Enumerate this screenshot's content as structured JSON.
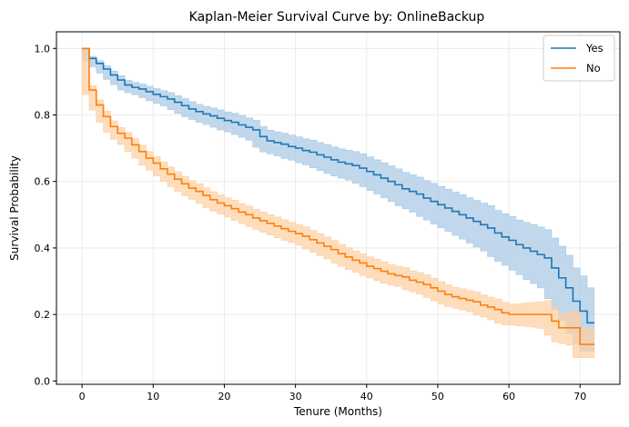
{
  "chart_data": {
    "type": "line",
    "step": true,
    "title": "Kaplan-Meier Survival Curve by: OnlineBackup",
    "xlabel": "Tenure (Months)",
    "ylabel": "Survival Probability",
    "xlim": [
      -3.6,
      75.6
    ],
    "ylim": [
      -0.01,
      1.05
    ],
    "xticks": [
      0,
      10,
      20,
      30,
      40,
      50,
      60,
      70
    ],
    "yticks": [
      0.0,
      0.2,
      0.4,
      0.6,
      0.8,
      1.0
    ],
    "xtick_labels": [
      "0",
      "10",
      "20",
      "30",
      "40",
      "50",
      "60",
      "70"
    ],
    "ytick_labels": [
      "0.0",
      "0.2",
      "0.4",
      "0.6",
      "0.8",
      "1.0"
    ],
    "grid": true,
    "legend_position": "top-right",
    "confidence_band": true,
    "series": [
      {
        "name": "Yes",
        "color": "#1f77b4",
        "band_color": "#a6c8e4",
        "x": [
          0,
          1,
          2,
          3,
          4,
          5,
          6,
          7,
          8,
          9,
          10,
          11,
          12,
          13,
          14,
          15,
          16,
          17,
          18,
          19,
          20,
          21,
          22,
          23,
          24,
          25,
          26,
          27,
          28,
          29,
          30,
          31,
          32,
          33,
          34,
          35,
          36,
          37,
          38,
          39,
          40,
          41,
          42,
          43,
          44,
          45,
          46,
          47,
          48,
          49,
          50,
          51,
          52,
          53,
          54,
          55,
          56,
          57,
          58,
          59,
          60,
          61,
          62,
          63,
          64,
          65,
          66,
          67,
          68,
          69,
          70,
          71,
          72
        ],
        "y": [
          1.0,
          0.97,
          0.955,
          0.938,
          0.92,
          0.905,
          0.89,
          0.883,
          0.878,
          0.87,
          0.862,
          0.855,
          0.848,
          0.838,
          0.828,
          0.818,
          0.81,
          0.803,
          0.797,
          0.79,
          0.783,
          0.778,
          0.77,
          0.763,
          0.755,
          0.735,
          0.722,
          0.717,
          0.712,
          0.705,
          0.7,
          0.693,
          0.688,
          0.68,
          0.673,
          0.665,
          0.658,
          0.653,
          0.648,
          0.64,
          0.63,
          0.62,
          0.61,
          0.6,
          0.59,
          0.578,
          0.57,
          0.562,
          0.55,
          0.54,
          0.53,
          0.52,
          0.51,
          0.5,
          0.49,
          0.48,
          0.47,
          0.46,
          0.445,
          0.433,
          0.423,
          0.41,
          0.4,
          0.39,
          0.38,
          0.37,
          0.34,
          0.31,
          0.28,
          0.24,
          0.21,
          0.175,
          0.175
        ],
        "ci_lower": [
          1.0,
          0.962,
          0.945,
          0.926,
          0.907,
          0.891,
          0.875,
          0.867,
          0.861,
          0.852,
          0.843,
          0.835,
          0.827,
          0.816,
          0.805,
          0.795,
          0.786,
          0.778,
          0.771,
          0.763,
          0.755,
          0.749,
          0.741,
          0.733,
          0.724,
          0.703,
          0.689,
          0.683,
          0.677,
          0.669,
          0.664,
          0.656,
          0.65,
          0.641,
          0.633,
          0.624,
          0.616,
          0.61,
          0.604,
          0.595,
          0.584,
          0.573,
          0.562,
          0.551,
          0.54,
          0.527,
          0.518,
          0.508,
          0.495,
          0.484,
          0.472,
          0.461,
          0.45,
          0.438,
          0.427,
          0.415,
          0.403,
          0.391,
          0.374,
          0.36,
          0.348,
          0.333,
          0.32,
          0.305,
          0.293,
          0.28,
          0.248,
          0.214,
          0.183,
          0.143,
          0.112,
          0.09,
          0.09
        ],
        "ci_upper": [
          1.0,
          0.976,
          0.963,
          0.948,
          0.932,
          0.918,
          0.904,
          0.898,
          0.893,
          0.886,
          0.879,
          0.873,
          0.867,
          0.858,
          0.849,
          0.84,
          0.832,
          0.826,
          0.821,
          0.815,
          0.809,
          0.805,
          0.798,
          0.791,
          0.784,
          0.765,
          0.754,
          0.749,
          0.745,
          0.739,
          0.734,
          0.728,
          0.724,
          0.717,
          0.711,
          0.704,
          0.698,
          0.694,
          0.69,
          0.683,
          0.674,
          0.665,
          0.656,
          0.647,
          0.638,
          0.627,
          0.62,
          0.613,
          0.603,
          0.594,
          0.585,
          0.577,
          0.568,
          0.56,
          0.551,
          0.543,
          0.535,
          0.527,
          0.513,
          0.503,
          0.495,
          0.484,
          0.477,
          0.47,
          0.463,
          0.455,
          0.43,
          0.405,
          0.378,
          0.34,
          0.316,
          0.28,
          0.28
        ]
      },
      {
        "name": "No",
        "color": "#ff7f0e",
        "band_color": "#fdcea0",
        "x": [
          0,
          1,
          2,
          3,
          4,
          5,
          6,
          7,
          8,
          9,
          10,
          11,
          12,
          13,
          14,
          15,
          16,
          17,
          18,
          19,
          20,
          21,
          22,
          23,
          24,
          25,
          26,
          27,
          28,
          29,
          30,
          31,
          32,
          33,
          34,
          35,
          36,
          37,
          38,
          39,
          40,
          41,
          42,
          43,
          44,
          45,
          46,
          47,
          48,
          49,
          50,
          51,
          52,
          53,
          54,
          55,
          56,
          57,
          58,
          59,
          60,
          61,
          62,
          63,
          64,
          65,
          66,
          67,
          68,
          69,
          70,
          71,
          72
        ],
        "y": [
          1.0,
          0.875,
          0.83,
          0.795,
          0.765,
          0.745,
          0.73,
          0.71,
          0.69,
          0.67,
          0.655,
          0.638,
          0.622,
          0.607,
          0.593,
          0.58,
          0.57,
          0.558,
          0.545,
          0.535,
          0.527,
          0.518,
          0.508,
          0.5,
          0.49,
          0.482,
          0.474,
          0.466,
          0.458,
          0.45,
          0.443,
          0.435,
          0.425,
          0.415,
          0.405,
          0.395,
          0.383,
          0.373,
          0.363,
          0.355,
          0.345,
          0.338,
          0.33,
          0.322,
          0.317,
          0.313,
          0.303,
          0.297,
          0.29,
          0.28,
          0.27,
          0.26,
          0.253,
          0.248,
          0.243,
          0.238,
          0.228,
          0.222,
          0.215,
          0.205,
          0.2,
          0.2,
          0.2,
          0.2,
          0.2,
          0.2,
          0.18,
          0.16,
          0.16,
          0.16,
          0.11,
          0.11,
          0.11
        ],
        "ci_lower": [
          1.0,
          0.861,
          0.815,
          0.778,
          0.748,
          0.727,
          0.711,
          0.69,
          0.67,
          0.649,
          0.634,
          0.616,
          0.6,
          0.584,
          0.57,
          0.557,
          0.546,
          0.534,
          0.521,
          0.511,
          0.502,
          0.493,
          0.483,
          0.474,
          0.464,
          0.456,
          0.447,
          0.439,
          0.431,
          0.423,
          0.416,
          0.408,
          0.397,
          0.387,
          0.377,
          0.367,
          0.355,
          0.345,
          0.335,
          0.327,
          0.317,
          0.31,
          0.302,
          0.294,
          0.288,
          0.284,
          0.274,
          0.268,
          0.261,
          0.251,
          0.241,
          0.231,
          0.224,
          0.219,
          0.213,
          0.208,
          0.198,
          0.192,
          0.184,
          0.174,
          0.169,
          0.168,
          0.166,
          0.164,
          0.162,
          0.158,
          0.138,
          0.118,
          0.113,
          0.108,
          0.07,
          0.07,
          0.07
        ],
        "ci_upper": [
          1.0,
          0.888,
          0.845,
          0.811,
          0.782,
          0.762,
          0.748,
          0.729,
          0.709,
          0.69,
          0.675,
          0.659,
          0.643,
          0.629,
          0.615,
          0.602,
          0.593,
          0.581,
          0.569,
          0.559,
          0.551,
          0.543,
          0.533,
          0.526,
          0.516,
          0.508,
          0.5,
          0.493,
          0.485,
          0.477,
          0.47,
          0.463,
          0.453,
          0.443,
          0.433,
          0.423,
          0.411,
          0.401,
          0.391,
          0.383,
          0.373,
          0.366,
          0.358,
          0.35,
          0.345,
          0.341,
          0.331,
          0.326,
          0.319,
          0.309,
          0.299,
          0.289,
          0.282,
          0.277,
          0.272,
          0.268,
          0.258,
          0.252,
          0.246,
          0.236,
          0.231,
          0.232,
          0.234,
          0.236,
          0.238,
          0.242,
          0.222,
          0.205,
          0.207,
          0.212,
          0.16,
          0.16,
          0.16
        ]
      }
    ]
  }
}
